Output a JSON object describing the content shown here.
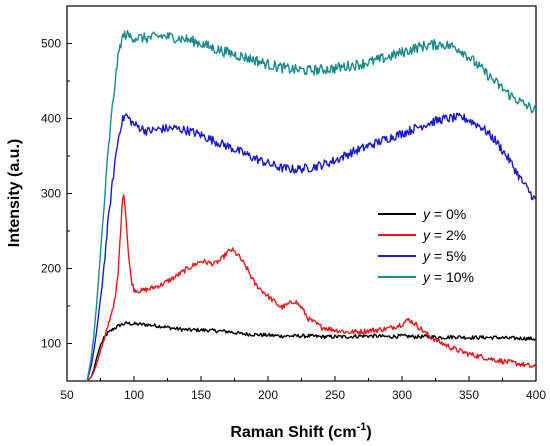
{
  "chart_data": {
    "type": "line",
    "xlabel": "Raman Shift (cm",
    "xlabel_sup": "-1",
    "xlabel_close": ")",
    "ylabel": "Intensity (a.u.)",
    "xlim": [
      50,
      400
    ],
    "ylim": [
      50,
      550
    ],
    "xticks": [
      50,
      100,
      150,
      200,
      250,
      300,
      350,
      400
    ],
    "yticks": [
      100,
      200,
      300,
      400,
      500
    ],
    "grid": false,
    "legend_position": "center-right",
    "series": [
      {
        "name": "y = 0%",
        "name_var": "y",
        "name_rest": " = 0%",
        "color": "#000000",
        "x": [
          65,
          68,
          70,
          72,
          75,
          78,
          80,
          85,
          90,
          95,
          100,
          110,
          120,
          130,
          140,
          150,
          160,
          170,
          180,
          190,
          200,
          210,
          220,
          230,
          240,
          250,
          260,
          270,
          280,
          290,
          300,
          310,
          320,
          330,
          340,
          350,
          360,
          370,
          380,
          390,
          400
        ],
        "y": [
          50,
          55,
          65,
          80,
          98,
          108,
          113,
          120,
          125,
          127,
          126,
          125,
          123,
          120,
          118,
          118,
          117,
          116,
          113,
          112,
          111,
          110,
          110,
          110,
          109,
          109,
          109,
          110,
          110,
          109,
          110,
          109,
          109,
          108,
          109,
          108,
          108,
          108,
          107,
          107,
          106
        ]
      },
      {
        "name": "y = 2%",
        "name_var": "y",
        "name_rest": " = 2%",
        "color": "#e41a1c",
        "x": [
          65,
          68,
          70,
          72,
          75,
          78,
          80,
          83,
          86,
          88,
          90,
          92,
          94,
          96,
          98,
          100,
          105,
          110,
          120,
          130,
          140,
          150,
          160,
          165,
          170,
          173,
          178,
          185,
          190,
          200,
          210,
          215,
          220,
          225,
          230,
          240,
          250,
          260,
          270,
          280,
          290,
          300,
          305,
          310,
          320,
          330,
          340,
          350,
          360,
          370,
          380,
          390,
          400
        ],
        "y": [
          50,
          55,
          62,
          72,
          90,
          105,
          120,
          140,
          160,
          190,
          250,
          307,
          270,
          215,
          185,
          172,
          170,
          172,
          178,
          188,
          200,
          210,
          206,
          212,
          222,
          225,
          217,
          198,
          180,
          163,
          148,
          152,
          157,
          148,
          133,
          122,
          118,
          115,
          116,
          118,
          120,
          126,
          132,
          126,
          110,
          100,
          92,
          86,
          82,
          78,
          75,
          72,
          68
        ]
      },
      {
        "name": "y = 5%",
        "name_var": "y",
        "name_rest": " = 5%",
        "color": "#1a1acd",
        "x": [
          65,
          68,
          70,
          72,
          75,
          78,
          80,
          83,
          86,
          88,
          90,
          92,
          94,
          96,
          100,
          110,
          120,
          130,
          140,
          150,
          160,
          170,
          180,
          190,
          200,
          210,
          220,
          230,
          240,
          250,
          260,
          270,
          280,
          290,
          300,
          310,
          320,
          330,
          340,
          345,
          350,
          360,
          370,
          380,
          390,
          400
        ],
        "y": [
          50,
          70,
          90,
          115,
          160,
          210,
          250,
          300,
          345,
          370,
          390,
          400,
          405,
          400,
          392,
          383,
          386,
          387,
          384,
          378,
          370,
          363,
          355,
          347,
          340,
          334,
          332,
          334,
          338,
          344,
          353,
          360,
          367,
          374,
          380,
          387,
          394,
          399,
          401,
          401,
          398,
          388,
          370,
          345,
          315,
          290
        ]
      },
      {
        "name": "y = 10%",
        "name_var": "y",
        "name_rest": " = 10%",
        "color": "#1a8a8a",
        "x": [
          65,
          68,
          70,
          72,
          75,
          78,
          80,
          83,
          86,
          88,
          90,
          92,
          94,
          96,
          100,
          110,
          120,
          130,
          140,
          150,
          160,
          170,
          180,
          190,
          200,
          210,
          220,
          230,
          240,
          250,
          260,
          270,
          280,
          290,
          300,
          310,
          320,
          330,
          340,
          345,
          350,
          360,
          370,
          380,
          390,
          400
        ],
        "y": [
          50,
          80,
          110,
          150,
          220,
          290,
          340,
          400,
          450,
          480,
          500,
          510,
          512,
          510,
          508,
          507,
          510,
          508,
          505,
          500,
          493,
          488,
          483,
          478,
          472,
          468,
          465,
          464,
          465,
          467,
          470,
          473,
          477,
          482,
          488,
          494,
          498,
          499,
          495,
          490,
          482,
          465,
          448,
          432,
          420,
          410
        ]
      }
    ]
  }
}
